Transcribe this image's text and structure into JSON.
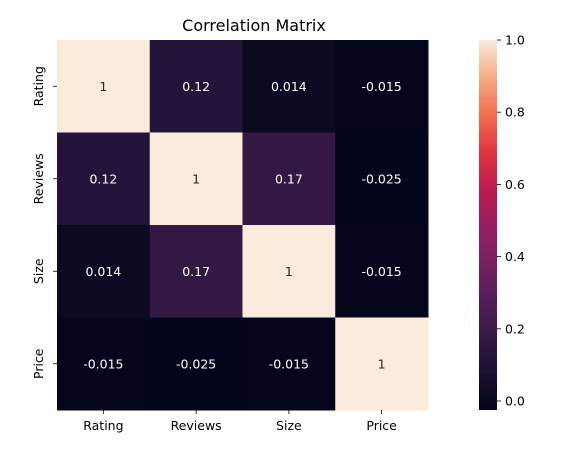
{
  "chart_data": {
    "type": "heatmap",
    "title": "Correlation Matrix",
    "x_labels": [
      "Rating",
      "Reviews",
      "Size",
      "Price"
    ],
    "y_labels": [
      "Rating",
      "Reviews",
      "Size",
      "Price"
    ],
    "values": [
      [
        1,
        0.12,
        0.014,
        -0.015
      ],
      [
        0.12,
        1,
        0.17,
        -0.025
      ],
      [
        0.014,
        0.17,
        1,
        -0.015
      ],
      [
        -0.015,
        -0.025,
        -0.015,
        1
      ]
    ],
    "cell_text": [
      [
        "1",
        "0.12",
        "0.014",
        "-0.015"
      ],
      [
        "0.12",
        "1",
        "0.17",
        "-0.025"
      ],
      [
        "0.014",
        "0.17",
        "1",
        "-0.015"
      ],
      [
        "-0.015",
        "-0.025",
        "-0.015",
        "1"
      ]
    ],
    "colorbar": {
      "vmin": -0.025,
      "vmax": 1,
      "ticks": [
        0.0,
        0.2,
        0.4,
        0.6,
        0.8,
        1.0
      ],
      "tick_labels": [
        "0.0",
        "0.2",
        "0.4",
        "0.6",
        "0.8",
        "1.0"
      ],
      "colormap": "rocket"
    }
  }
}
